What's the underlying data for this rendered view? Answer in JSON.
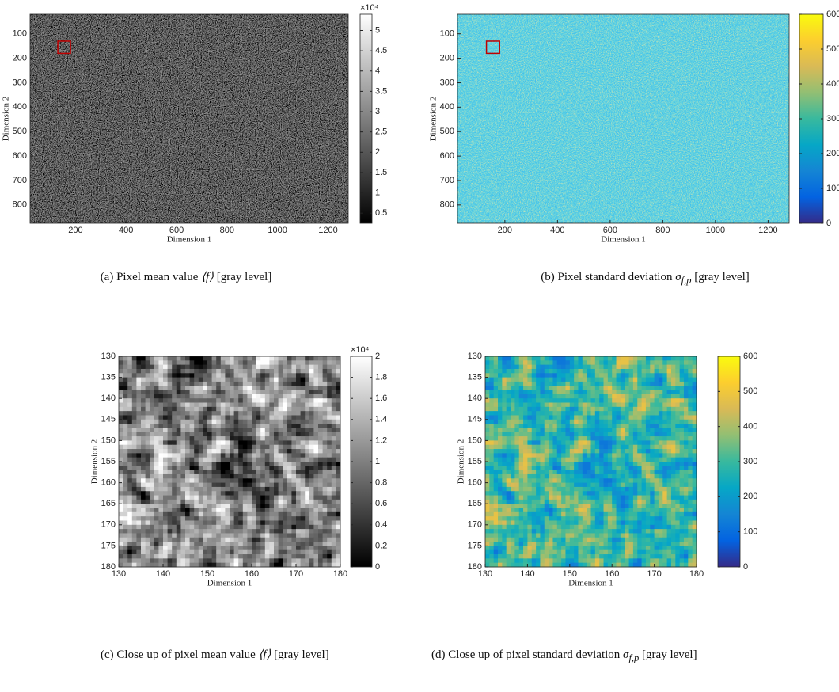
{
  "chart_data": [
    {
      "type": "heatmap",
      "caption": "(a) Pixel mean value",
      "symbol": "⟨f⟩",
      "unit": "[gray level]",
      "xlabel": "Dimension 1",
      "ylabel": "Dimension 2",
      "xlim": [
        20,
        1280
      ],
      "ylim": [
        20,
        875
      ],
      "y_reversed": true,
      "xticks": [
        200,
        400,
        600,
        800,
        1000,
        1200
      ],
      "yticks": [
        100,
        200,
        300,
        400,
        500,
        600,
        700,
        800
      ],
      "colormap": "gray",
      "clim": [
        0.25,
        5.4
      ],
      "cticks": [
        0.5,
        1,
        1.5,
        2,
        2.5,
        3,
        3.5,
        4,
        4.5,
        5
      ],
      "cmultiplier": "×10⁴",
      "inset_box_color": "#c00000"
    },
    {
      "type": "heatmap",
      "caption": "(b) Pixel standard deviation",
      "symbol": "σ",
      "symbol_sub": "f,p",
      "unit": "[gray level]",
      "xlabel": "Dimension 1",
      "ylabel": "Dimension 2",
      "xlim": [
        20,
        1280
      ],
      "ylim": [
        20,
        875
      ],
      "y_reversed": true,
      "xticks": [
        200,
        400,
        600,
        800,
        1000,
        1200
      ],
      "yticks": [
        100,
        200,
        300,
        400,
        500,
        600,
        700,
        800
      ],
      "colormap": "parula",
      "clim": [
        0,
        600
      ],
      "cticks": [
        0,
        100,
        200,
        300,
        400,
        500,
        600
      ],
      "inset_box_color": "#c00000"
    },
    {
      "type": "heatmap",
      "caption": "(c) Close up of pixel mean value",
      "symbol": "⟨f⟩",
      "unit": "[gray level]",
      "xlabel": "Dimension 1",
      "ylabel": "Dimension 2",
      "xlim": [
        130,
        180
      ],
      "ylim": [
        130,
        180
      ],
      "y_reversed": true,
      "xticks": [
        130,
        140,
        150,
        160,
        170,
        180
      ],
      "yticks": [
        130,
        135,
        140,
        145,
        150,
        155,
        160,
        165,
        170,
        175,
        180
      ],
      "colormap": "gray",
      "clim": [
        0,
        2
      ],
      "cticks": [
        0,
        0.2,
        0.4,
        0.6,
        0.8,
        1,
        1.2,
        1.4,
        1.6,
        1.8,
        2
      ],
      "cmultiplier": "×10⁴"
    },
    {
      "type": "heatmap",
      "caption": "(d) Close up of pixel standard deviation",
      "symbol": "σ",
      "symbol_sub": "f,p",
      "unit": "[gray level]",
      "xlabel": "Dimension 1",
      "ylabel": "Dimension 2",
      "xlim": [
        130,
        180
      ],
      "ylim": [
        130,
        180
      ],
      "y_reversed": true,
      "xticks": [
        130,
        140,
        150,
        160,
        170,
        180
      ],
      "yticks": [
        130,
        135,
        140,
        145,
        150,
        155,
        160,
        165,
        170,
        175,
        180
      ],
      "colormap": "parula",
      "clim": [
        0,
        600
      ],
      "cticks": [
        0,
        100,
        200,
        300,
        400,
        500,
        600
      ]
    }
  ]
}
